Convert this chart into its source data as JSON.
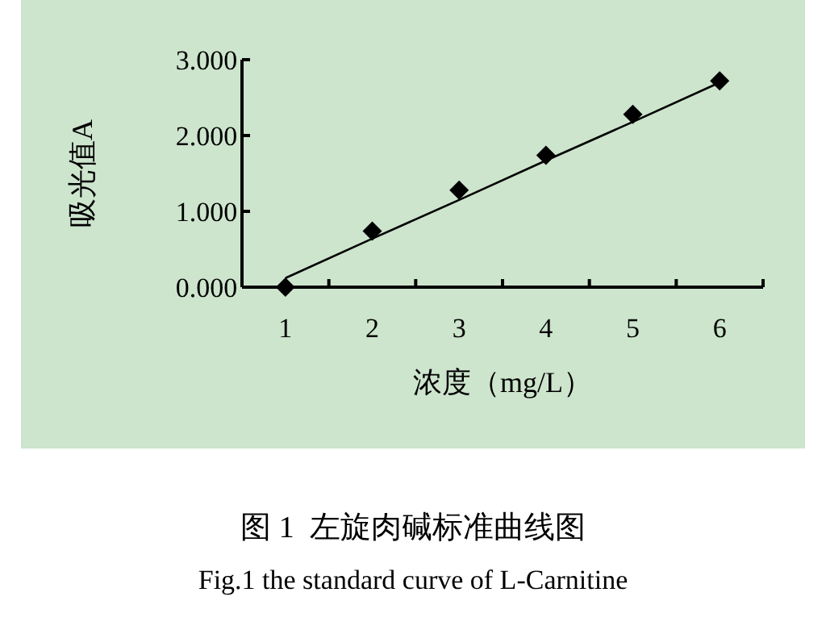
{
  "chart_data": {
    "type": "scatter",
    "ylabel": "吸光值A",
    "xlabel": "浓度（mg/L）",
    "categories": [
      "1",
      "2",
      "3",
      "4",
      "5",
      "6"
    ],
    "ylim": [
      0,
      3
    ],
    "yticks": [
      {
        "value": 0,
        "label": "0.000"
      },
      {
        "value": 1,
        "label": "1.000"
      },
      {
        "value": 2,
        "label": "2.000"
      },
      {
        "value": 3,
        "label": "3.000"
      }
    ],
    "series": [
      {
        "color": "#000000",
        "marker": "diamond",
        "values": [
          0,
          0.74,
          1.28,
          1.74,
          2.28,
          2.72
        ]
      },
      {
        "type": "line",
        "color": "#000000",
        "marker": "none",
        "line_style": "solid",
        "values": [
          0.12,
          0.64,
          1.15,
          1.67,
          2.18,
          2.7
        ]
      }
    ],
    "grid": false,
    "annotations": [
      "图 1  左旋肉碱标准曲线图",
      "Fig.1 the standard curve of L-Carnitine"
    ]
  }
}
